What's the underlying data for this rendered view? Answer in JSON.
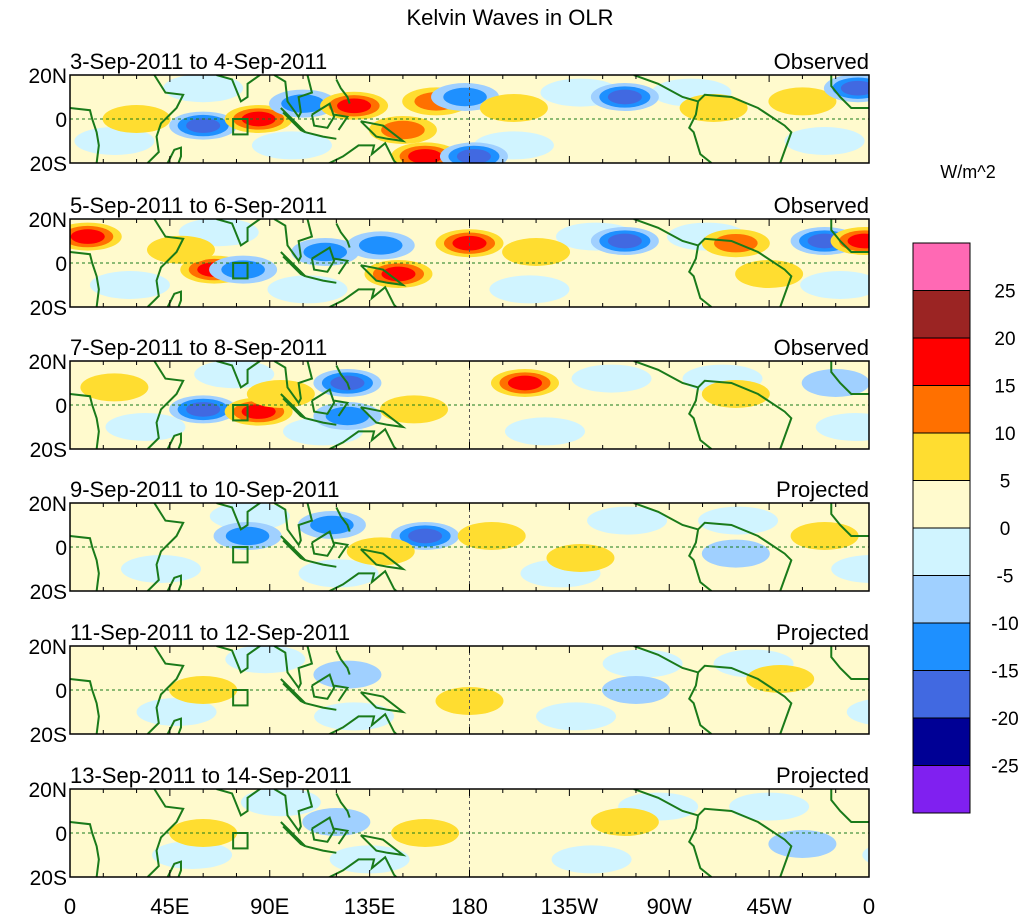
{
  "title": "Kelvin Waves in OLR",
  "colorbar": {
    "unit_label": "W/m^2",
    "ticks": [
      "25",
      "20",
      "15",
      "10",
      "5",
      "0",
      "-5",
      "-10",
      "-15",
      "-20",
      "-25"
    ],
    "colors": [
      "#ff69b4",
      "#9b2423",
      "#ff0000",
      "#ff7000",
      "#ffdd30",
      "#fffacd",
      "#d0f4ff",
      "#a0d0ff",
      "#1e90ff",
      "#4169e1",
      "#000095",
      "#8020f0"
    ],
    "levels": [
      30,
      25,
      20,
      15,
      10,
      5,
      0,
      -5,
      -10,
      -15,
      -20,
      -25
    ]
  },
  "x_tick_labels": [
    "0",
    "45E",
    "90E",
    "135E",
    "180",
    "135W",
    "90W",
    "45W",
    "0"
  ],
  "y_tick_labels": [
    "20N",
    "0",
    "20S"
  ],
  "chart_data": {
    "type": "heatmap",
    "title": "Kelvin Waves in OLR",
    "xlabel": "",
    "ylabel": "",
    "xlim": [
      0,
      360
    ],
    "ylim": [
      -20,
      20
    ],
    "panels": [
      {
        "label": "3-Sep-2011 to 4-Sep-2011",
        "kind": "Observed",
        "anomalies": [
          [
            60,
            -3,
            -15
          ],
          [
            85,
            0,
            15
          ],
          [
            105,
            7,
            -10
          ],
          [
            128,
            6,
            15
          ],
          [
            165,
            8,
            10
          ],
          [
            178,
            10,
            -10
          ],
          [
            160,
            -17,
            15
          ],
          [
            182,
            -17,
            -15
          ],
          [
            200,
            5,
            5
          ],
          [
            250,
            10,
            -15
          ],
          [
            290,
            5,
            5
          ],
          [
            330,
            8,
            5
          ],
          [
            355,
            14,
            -15
          ],
          [
            30,
            0,
            5
          ],
          [
            150,
            -5,
            10
          ]
        ]
      },
      {
        "label": "5-Sep-2011 to 6-Sep-2011",
        "kind": "Observed",
        "anomalies": [
          [
            65,
            -3,
            15
          ],
          [
            78,
            -3,
            -10
          ],
          [
            115,
            5,
            -10
          ],
          [
            140,
            8,
            -10
          ],
          [
            180,
            9,
            15
          ],
          [
            148,
            -5,
            15
          ],
          [
            250,
            10,
            -15
          ],
          [
            300,
            9,
            10
          ],
          [
            340,
            10,
            -15
          ],
          [
            358,
            10,
            15
          ],
          [
            8,
            12,
            15
          ],
          [
            50,
            6,
            5
          ],
          [
            210,
            5,
            5
          ],
          [
            315,
            -5,
            5
          ]
        ]
      },
      {
        "label": "7-Sep-2011 to 8-Sep-2011",
        "kind": "Observed",
        "anomalies": [
          [
            60,
            -2,
            -15
          ],
          [
            85,
            -3,
            15
          ],
          [
            125,
            10,
            -15
          ],
          [
            205,
            10,
            15
          ],
          [
            155,
            -2,
            5
          ],
          [
            125,
            -5,
            -10
          ],
          [
            20,
            8,
            5
          ],
          [
            95,
            5,
            5
          ],
          [
            300,
            5,
            5
          ],
          [
            345,
            10,
            -5
          ]
        ]
      },
      {
        "label": "9-Sep-2011 to 10-Sep-2011",
        "kind": "Projected",
        "anomalies": [
          [
            80,
            5,
            -10
          ],
          [
            160,
            5,
            -15
          ],
          [
            118,
            10,
            -10
          ],
          [
            190,
            5,
            5
          ],
          [
            340,
            5,
            5
          ],
          [
            140,
            -2,
            5
          ],
          [
            230,
            -5,
            5
          ],
          [
            300,
            -3,
            -5
          ]
        ]
      },
      {
        "label": "11-Sep-2011 to 12-Sep-2011",
        "kind": "Projected",
        "anomalies": [
          [
            125,
            7,
            -5
          ],
          [
            255,
            0,
            -5
          ],
          [
            60,
            0,
            5
          ],
          [
            180,
            -5,
            5
          ],
          [
            320,
            5,
            5
          ]
        ]
      },
      {
        "label": "13-Sep-2011 to 14-Sep-2011",
        "kind": "Projected",
        "anomalies": [
          [
            60,
            0,
            5
          ],
          [
            160,
            0,
            5
          ],
          [
            250,
            5,
            5
          ],
          [
            120,
            5,
            -5
          ],
          [
            330,
            -5,
            -5
          ]
        ]
      }
    ]
  }
}
